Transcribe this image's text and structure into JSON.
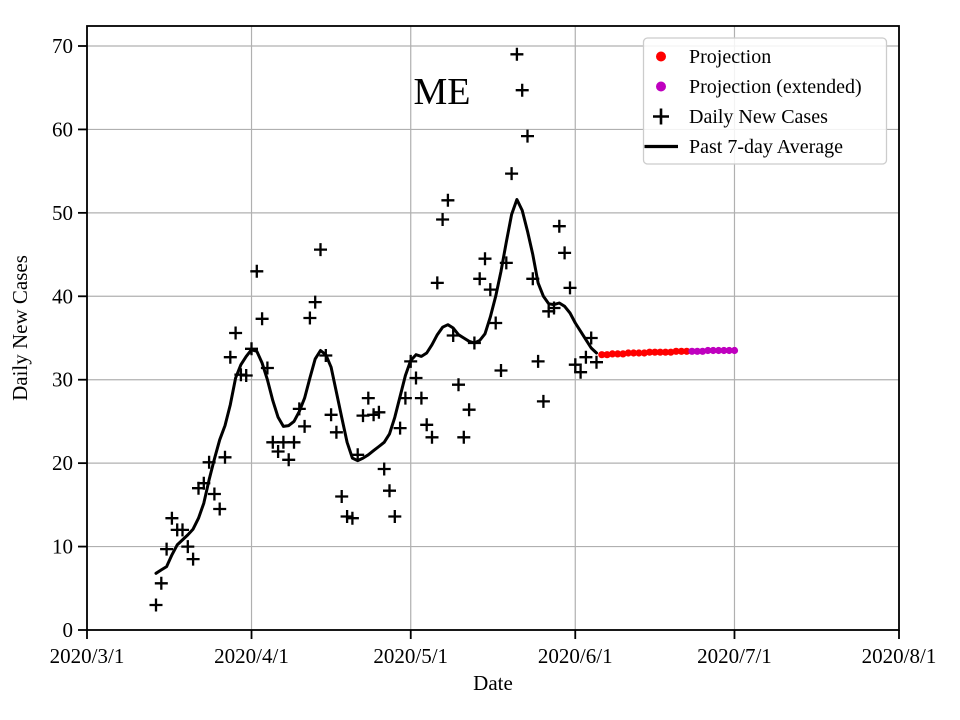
{
  "chart_data": {
    "type": "line",
    "title": "ME",
    "xlabel": "Date",
    "ylabel": "Daily New Cases",
    "x_ticks": [
      "2020/3/1",
      "2020/4/1",
      "2020/5/1",
      "2020/6/1",
      "2020/7/1",
      "2020/8/1"
    ],
    "y_ticks": [
      0,
      10,
      20,
      30,
      40,
      50,
      60,
      70
    ],
    "ylim": [
      0,
      72.5
    ],
    "grid": true,
    "legend_position": "upper right",
    "colors": {
      "projection": "#ff0000",
      "projection_extended": "#bf00bf",
      "daily": "#000000",
      "average": "#000000",
      "grid": "#b0b0b0",
      "legend_border": "#cccccc"
    },
    "series": [
      {
        "name": "Projection",
        "type": "scatter-dot",
        "color_key": "projection",
        "points": [
          [
            "2020/6/6",
            33.0
          ],
          [
            "2020/6/7",
            33.0
          ],
          [
            "2020/6/8",
            33.1
          ],
          [
            "2020/6/9",
            33.1
          ],
          [
            "2020/6/10",
            33.1
          ],
          [
            "2020/6/11",
            33.2
          ],
          [
            "2020/6/12",
            33.2
          ],
          [
            "2020/6/13",
            33.2
          ],
          [
            "2020/6/14",
            33.2
          ],
          [
            "2020/6/15",
            33.3
          ],
          [
            "2020/6/16",
            33.3
          ],
          [
            "2020/6/17",
            33.3
          ],
          [
            "2020/6/18",
            33.3
          ],
          [
            "2020/6/19",
            33.3
          ],
          [
            "2020/6/20",
            33.4
          ],
          [
            "2020/6/21",
            33.4
          ],
          [
            "2020/6/22",
            33.4
          ]
        ]
      },
      {
        "name": "Projection (extended)",
        "type": "scatter-dot",
        "color_key": "projection_extended",
        "points": [
          [
            "2020/6/23",
            33.4
          ],
          [
            "2020/6/24",
            33.4
          ],
          [
            "2020/6/25",
            33.4
          ],
          [
            "2020/6/26",
            33.5
          ],
          [
            "2020/6/27",
            33.5
          ],
          [
            "2020/6/28",
            33.5
          ],
          [
            "2020/6/29",
            33.5
          ],
          [
            "2020/6/30",
            33.5
          ],
          [
            "2020/7/1",
            33.5
          ]
        ]
      },
      {
        "name": "Daily New Cases",
        "type": "scatter-plus",
        "color_key": "daily",
        "points": [
          [
            "2020/3/14",
            3.0
          ],
          [
            "2020/3/15",
            5.6
          ],
          [
            "2020/3/16",
            9.7
          ],
          [
            "2020/3/17",
            13.4
          ],
          [
            "2020/3/18",
            12.0
          ],
          [
            "2020/3/19",
            12.0
          ],
          [
            "2020/3/20",
            10.0
          ],
          [
            "2020/3/21",
            8.5
          ],
          [
            "2020/3/22",
            17.0
          ],
          [
            "2020/3/23",
            17.6
          ],
          [
            "2020/3/24",
            20.1
          ],
          [
            "2020/3/25",
            16.3
          ],
          [
            "2020/3/26",
            14.5
          ],
          [
            "2020/3/27",
            20.7
          ],
          [
            "2020/3/28",
            32.7
          ],
          [
            "2020/3/29",
            35.6
          ],
          [
            "2020/3/30",
            30.6
          ],
          [
            "2020/3/31",
            30.5
          ],
          [
            "2020/4/1",
            33.7
          ],
          [
            "2020/4/2",
            43.0
          ],
          [
            "2020/4/3",
            37.3
          ],
          [
            "2020/4/4",
            31.4
          ],
          [
            "2020/4/5",
            22.5
          ],
          [
            "2020/4/6",
            21.4
          ],
          [
            "2020/4/7",
            22.5
          ],
          [
            "2020/4/8",
            20.4
          ],
          [
            "2020/4/9",
            22.5
          ],
          [
            "2020/4/10",
            26.5
          ],
          [
            "2020/4/11",
            24.4
          ],
          [
            "2020/4/12",
            37.4
          ],
          [
            "2020/4/13",
            39.3
          ],
          [
            "2020/4/14",
            45.6
          ],
          [
            "2020/4/15",
            32.9
          ],
          [
            "2020/4/16",
            25.8
          ],
          [
            "2020/4/17",
            23.7
          ],
          [
            "2020/4/18",
            16.0
          ],
          [
            "2020/4/19",
            13.6
          ],
          [
            "2020/4/20",
            13.4
          ],
          [
            "2020/4/21",
            21.0
          ],
          [
            "2020/4/22",
            25.7
          ],
          [
            "2020/4/23",
            27.8
          ],
          [
            "2020/4/24",
            25.8
          ],
          [
            "2020/4/25",
            26.1
          ],
          [
            "2020/4/26",
            19.3
          ],
          [
            "2020/4/27",
            16.7
          ],
          [
            "2020/4/28",
            13.6
          ],
          [
            "2020/4/29",
            24.2
          ],
          [
            "2020/4/30",
            27.8
          ],
          [
            "2020/5/1",
            32.2
          ],
          [
            "2020/5/2",
            30.2
          ],
          [
            "2020/5/3",
            27.8
          ],
          [
            "2020/5/4",
            24.6
          ],
          [
            "2020/5/5",
            23.1
          ],
          [
            "2020/5/6",
            41.6
          ],
          [
            "2020/5/7",
            49.2
          ],
          [
            "2020/5/8",
            51.5
          ],
          [
            "2020/5/9",
            35.3
          ],
          [
            "2020/5/10",
            29.4
          ],
          [
            "2020/5/11",
            23.1
          ],
          [
            "2020/5/12",
            26.4
          ],
          [
            "2020/5/13",
            34.4
          ],
          [
            "2020/5/14",
            42.1
          ],
          [
            "2020/5/15",
            44.5
          ],
          [
            "2020/5/16",
            40.8
          ],
          [
            "2020/5/17",
            36.8
          ],
          [
            "2020/5/18",
            31.1
          ],
          [
            "2020/5/19",
            44.0
          ],
          [
            "2020/5/20",
            54.7
          ],
          [
            "2020/5/21",
            69.0
          ],
          [
            "2020/5/22",
            64.7
          ],
          [
            "2020/5/23",
            59.2
          ],
          [
            "2020/5/24",
            42.1
          ],
          [
            "2020/5/25",
            32.2
          ],
          [
            "2020/5/26",
            27.4
          ],
          [
            "2020/5/27",
            38.2
          ],
          [
            "2020/5/28",
            38.6
          ],
          [
            "2020/5/29",
            48.4
          ],
          [
            "2020/5/30",
            45.2
          ],
          [
            "2020/5/31",
            41.0
          ],
          [
            "2020/6/1",
            31.8
          ],
          [
            "2020/6/2",
            30.9
          ],
          [
            "2020/6/3",
            32.7
          ],
          [
            "2020/6/4",
            35.0
          ],
          [
            "2020/6/5",
            32.1
          ]
        ]
      },
      {
        "name": "Past 7-day Average",
        "type": "line",
        "color_key": "average",
        "points": [
          [
            "2020/3/14",
            6.8
          ],
          [
            "2020/3/15",
            7.2
          ],
          [
            "2020/3/16",
            7.6
          ],
          [
            "2020/3/17",
            9.0
          ],
          [
            "2020/3/18",
            10.2
          ],
          [
            "2020/3/19",
            10.8
          ],
          [
            "2020/3/20",
            11.4
          ],
          [
            "2020/3/21",
            12.1
          ],
          [
            "2020/3/22",
            13.4
          ],
          [
            "2020/3/23",
            15.2
          ],
          [
            "2020/3/24",
            18.0
          ],
          [
            "2020/3/25",
            20.5
          ],
          [
            "2020/3/26",
            22.8
          ],
          [
            "2020/3/27",
            24.5
          ],
          [
            "2020/3/28",
            27.0
          ],
          [
            "2020/3/29",
            30.2
          ],
          [
            "2020/3/30",
            31.8
          ],
          [
            "2020/3/31",
            32.8
          ],
          [
            "2020/4/1",
            33.6
          ],
          [
            "2020/4/2",
            33.4
          ],
          [
            "2020/4/3",
            32.0
          ],
          [
            "2020/4/4",
            30.0
          ],
          [
            "2020/4/5",
            27.5
          ],
          [
            "2020/4/6",
            25.5
          ],
          [
            "2020/4/7",
            24.4
          ],
          [
            "2020/4/8",
            24.5
          ],
          [
            "2020/4/9",
            25.0
          ],
          [
            "2020/4/10",
            26.2
          ],
          [
            "2020/4/11",
            27.8
          ],
          [
            "2020/4/12",
            30.2
          ],
          [
            "2020/4/13",
            32.5
          ],
          [
            "2020/4/14",
            33.5
          ],
          [
            "2020/4/15",
            33.0
          ],
          [
            "2020/4/16",
            31.5
          ],
          [
            "2020/4/17",
            28.5
          ],
          [
            "2020/4/18",
            25.5
          ],
          [
            "2020/4/19",
            22.5
          ],
          [
            "2020/4/20",
            20.6
          ],
          [
            "2020/4/21",
            20.3
          ],
          [
            "2020/4/22",
            20.6
          ],
          [
            "2020/4/23",
            21.0
          ],
          [
            "2020/4/24",
            21.5
          ],
          [
            "2020/4/25",
            22.0
          ],
          [
            "2020/4/26",
            22.5
          ],
          [
            "2020/4/27",
            23.5
          ],
          [
            "2020/4/28",
            25.5
          ],
          [
            "2020/4/29",
            28.0
          ],
          [
            "2020/4/30",
            30.5
          ],
          [
            "2020/5/1",
            32.3
          ],
          [
            "2020/5/2",
            33.0
          ],
          [
            "2020/5/3",
            32.8
          ],
          [
            "2020/5/4",
            33.2
          ],
          [
            "2020/5/5",
            34.2
          ],
          [
            "2020/5/6",
            35.4
          ],
          [
            "2020/5/7",
            36.3
          ],
          [
            "2020/5/8",
            36.6
          ],
          [
            "2020/5/9",
            36.2
          ],
          [
            "2020/5/10",
            35.4
          ],
          [
            "2020/5/11",
            35.0
          ],
          [
            "2020/5/12",
            34.6
          ],
          [
            "2020/5/13",
            34.4
          ],
          [
            "2020/5/14",
            34.7
          ],
          [
            "2020/5/15",
            35.5
          ],
          [
            "2020/5/16",
            37.5
          ],
          [
            "2020/5/17",
            40.0
          ],
          [
            "2020/5/18",
            43.0
          ],
          [
            "2020/5/19",
            46.5
          ],
          [
            "2020/5/20",
            49.8
          ],
          [
            "2020/5/21",
            51.6
          ],
          [
            "2020/5/22",
            50.3
          ],
          [
            "2020/5/23",
            47.8
          ],
          [
            "2020/5/24",
            45.0
          ],
          [
            "2020/5/25",
            41.6
          ],
          [
            "2020/5/26",
            40.0
          ],
          [
            "2020/5/27",
            39.1
          ],
          [
            "2020/5/28",
            39.0
          ],
          [
            "2020/5/29",
            39.2
          ],
          [
            "2020/5/30",
            38.8
          ],
          [
            "2020/5/31",
            38.0
          ],
          [
            "2020/6/1",
            36.8
          ],
          [
            "2020/6/2",
            35.8
          ],
          [
            "2020/6/3",
            34.8
          ],
          [
            "2020/6/4",
            33.8
          ],
          [
            "2020/6/5",
            33.2
          ]
        ]
      }
    ]
  }
}
